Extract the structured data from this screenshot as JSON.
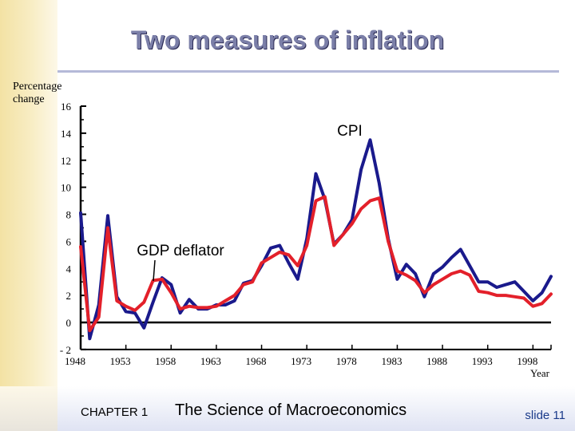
{
  "title": "Two measures of inflation",
  "footer": {
    "chapter": "CHAPTER 1",
    "book": "The Science of Macroeconomics",
    "slide": "slide 11"
  },
  "colors": {
    "cpi": "#1a1a8c",
    "gdp_deflator": "#e3202a",
    "axis": "#000000",
    "title": "#7b7fa8"
  },
  "chart_data": {
    "type": "line",
    "title": "Two measures of inflation",
    "ylabel_lines": [
      "Percentage",
      "change"
    ],
    "xlabel": "Year",
    "ylim": [
      -2,
      16
    ],
    "xlim": [
      1948,
      2000
    ],
    "yticks": [
      -2,
      0,
      2,
      4,
      6,
      8,
      10,
      12,
      14,
      16
    ],
    "xticks": [
      1948,
      1953,
      1958,
      1963,
      1968,
      1973,
      1978,
      1983,
      1988,
      1993,
      1998
    ],
    "grid": false,
    "x": [
      1948,
      1949,
      1950,
      1951,
      1952,
      1953,
      1954,
      1955,
      1956,
      1957,
      1958,
      1959,
      1960,
      1961,
      1962,
      1963,
      1964,
      1965,
      1966,
      1967,
      1968,
      1969,
      1970,
      1971,
      1972,
      1973,
      1974,
      1975,
      1976,
      1977,
      1978,
      1979,
      1980,
      1981,
      1982,
      1983,
      1984,
      1985,
      1986,
      1987,
      1988,
      1989,
      1990,
      1991,
      1992,
      1993,
      1994,
      1995,
      1996,
      1997,
      1998,
      1999,
      2000
    ],
    "series": [
      {
        "name": "CPI",
        "values": [
          8.1,
          -1.2,
          1.3,
          7.9,
          1.9,
          0.8,
          0.7,
          -0.4,
          1.5,
          3.3,
          2.8,
          0.7,
          1.7,
          1.0,
          1.0,
          1.3,
          1.3,
          1.6,
          2.9,
          3.1,
          4.2,
          5.5,
          5.7,
          4.4,
          3.2,
          6.2,
          11.0,
          9.1,
          5.8,
          6.5,
          7.6,
          11.3,
          13.5,
          10.3,
          6.2,
          3.2,
          4.3,
          3.6,
          1.9,
          3.6,
          4.1,
          4.8,
          5.4,
          4.2,
          3.0,
          3.0,
          2.6,
          2.8,
          3.0,
          2.3,
          1.6,
          2.2,
          3.4
        ]
      },
      {
        "name": "GDP deflator",
        "values": [
          5.6,
          -0.6,
          0.4,
          7.0,
          1.6,
          1.2,
          0.9,
          1.5,
          3.1,
          3.2,
          2.2,
          1.0,
          1.2,
          1.1,
          1.1,
          1.2,
          1.6,
          2.0,
          2.8,
          3.0,
          4.4,
          4.8,
          5.2,
          5.0,
          4.2,
          5.7,
          9.0,
          9.3,
          5.7,
          6.5,
          7.3,
          8.4,
          9.0,
          9.2,
          6.0,
          3.8,
          3.5,
          3.1,
          2.2,
          2.8,
          3.2,
          3.6,
          3.8,
          3.5,
          2.3,
          2.2,
          2.0,
          2.0,
          1.9,
          1.8,
          1.2,
          1.4,
          2.1
        ]
      }
    ],
    "annotations": [
      "CPI",
      "GDP deflator"
    ]
  }
}
